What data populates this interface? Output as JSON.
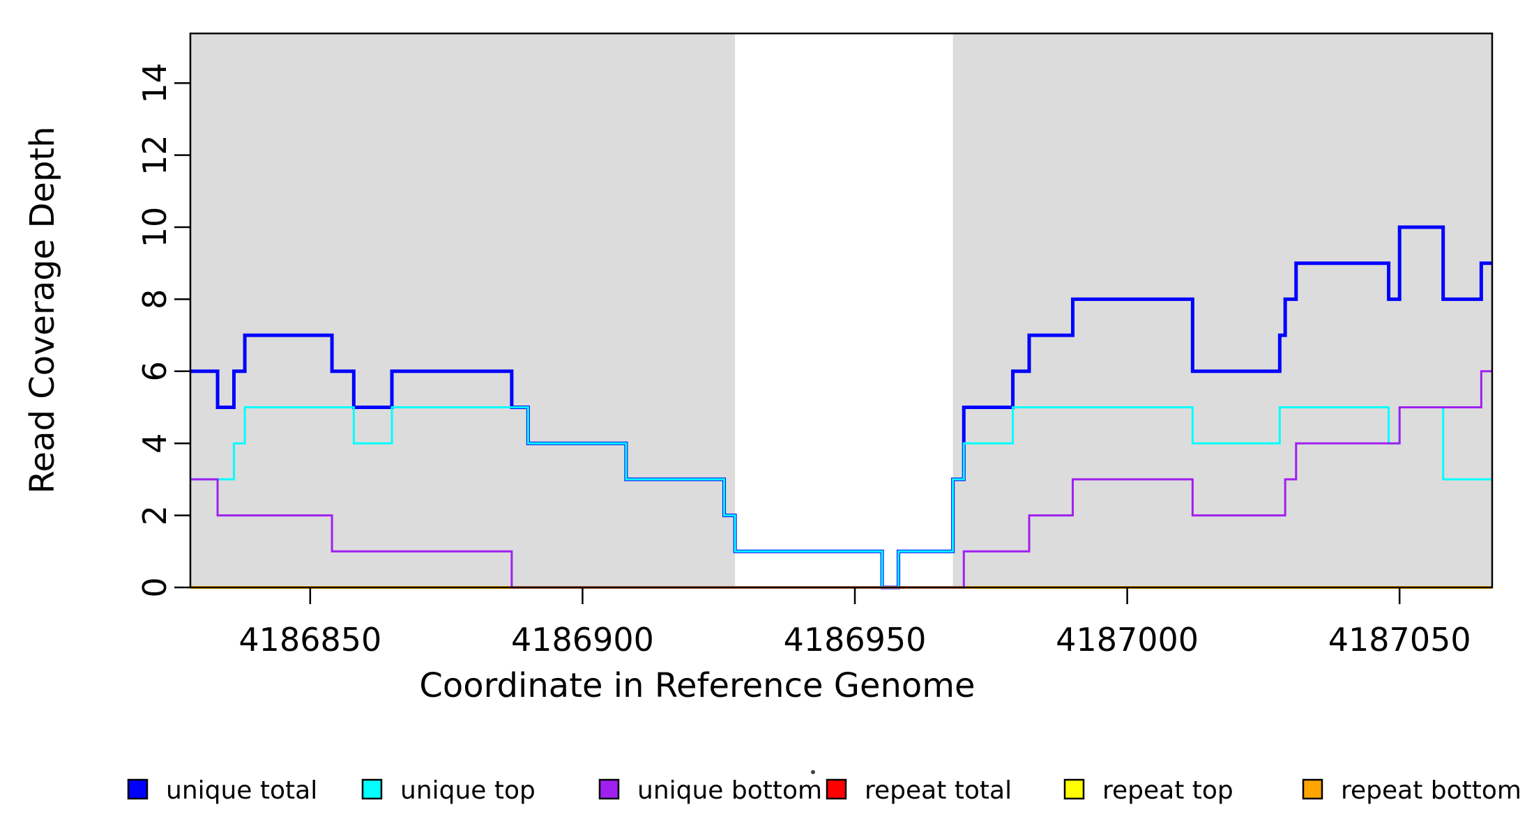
{
  "chart_data": {
    "type": "line",
    "step_style": true,
    "title": "",
    "xlabel": "Coordinate in Reference Genome",
    "ylabel": "Read Coverage Depth",
    "xlim": [
      4186828,
      4187067
    ],
    "ylim": [
      0,
      15
    ],
    "xticks": [
      4186850,
      4186900,
      4186950,
      4187000,
      4187050
    ],
    "yticks": [
      0,
      2,
      4,
      6,
      8,
      10,
      12,
      14
    ],
    "grid": false,
    "legend_position": "bottom",
    "background_shading": {
      "color": "#DCDCDC",
      "regions": [
        [
          4186828,
          4186928
        ],
        [
          4186968,
          4187067
        ]
      ]
    },
    "series": [
      {
        "name": "unique total",
        "color": "#0000FF",
        "width": 5,
        "points": [
          [
            4186828,
            6
          ],
          [
            4186833,
            5
          ],
          [
            4186836,
            6
          ],
          [
            4186838,
            7
          ],
          [
            4186854,
            6
          ],
          [
            4186858,
            5
          ],
          [
            4186865,
            6
          ],
          [
            4186887,
            5
          ],
          [
            4186890,
            4
          ],
          [
            4186908,
            3
          ],
          [
            4186926,
            2
          ],
          [
            4186928,
            1
          ],
          [
            4186955,
            0
          ],
          [
            4186958,
            1
          ],
          [
            4186968,
            3
          ],
          [
            4186970,
            5
          ],
          [
            4186979,
            6
          ],
          [
            4186982,
            7
          ],
          [
            4186990,
            8
          ],
          [
            4187012,
            6
          ],
          [
            4187028,
            7
          ],
          [
            4187029,
            8
          ],
          [
            4187031,
            9
          ],
          [
            4187048,
            8
          ],
          [
            4187050,
            10
          ],
          [
            4187058,
            8
          ],
          [
            4187065,
            9
          ],
          [
            4187067,
            9
          ]
        ]
      },
      {
        "name": "unique top",
        "color": "#00FFFF",
        "width": 3,
        "points": [
          [
            4186828,
            3
          ],
          [
            4186836,
            4
          ],
          [
            4186838,
            5
          ],
          [
            4186858,
            4
          ],
          [
            4186865,
            5
          ],
          [
            4186890,
            4
          ],
          [
            4186908,
            3
          ],
          [
            4186926,
            2
          ],
          [
            4186928,
            1
          ],
          [
            4186955,
            0
          ],
          [
            4186958,
            1
          ],
          [
            4186968,
            3
          ],
          [
            4186970,
            4
          ],
          [
            4186979,
            5
          ],
          [
            4187012,
            4
          ],
          [
            4187028,
            5
          ],
          [
            4187048,
            4
          ],
          [
            4187050,
            5
          ],
          [
            4187058,
            3
          ],
          [
            4187067,
            3
          ]
        ]
      },
      {
        "name": "unique bottom",
        "color": "#A020F0",
        "width": 3,
        "points": [
          [
            4186828,
            3
          ],
          [
            4186833,
            2
          ],
          [
            4186854,
            1
          ],
          [
            4186887,
            0
          ],
          [
            4186970,
            1
          ],
          [
            4186982,
            2
          ],
          [
            4186990,
            3
          ],
          [
            4187012,
            2
          ],
          [
            4187029,
            3
          ],
          [
            4187031,
            4
          ],
          [
            4187050,
            5
          ],
          [
            4187065,
            6
          ],
          [
            4187067,
            6
          ]
        ]
      },
      {
        "name": "repeat total",
        "color": "#FF0000",
        "width": 3,
        "points": [
          [
            4186828,
            0
          ],
          [
            4187067,
            0
          ]
        ]
      },
      {
        "name": "repeat top",
        "color": "#FFFF00",
        "width": 3,
        "points": [
          [
            4186828,
            0
          ],
          [
            4187067,
            0
          ]
        ]
      },
      {
        "name": "repeat bottom",
        "color": "#FFA500",
        "width": 4,
        "points": [
          [
            4186828,
            0
          ],
          [
            4187067,
            0
          ]
        ]
      }
    ]
  }
}
